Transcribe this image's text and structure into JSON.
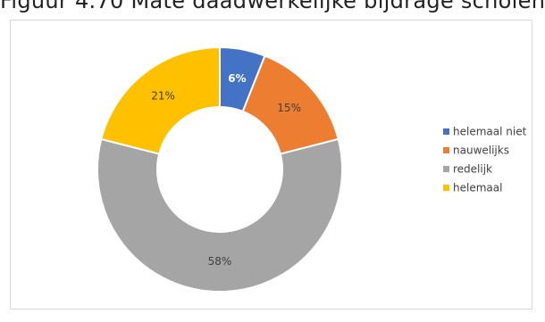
{
  "caption": "Figuur 4.70 Mate daadwerkelijke bijdrage scholen",
  "chart_data": {
    "type": "pie",
    "donut": true,
    "categories": [
      "helemaal niet",
      "nauwelijks",
      "redelijk",
      "helemaal"
    ],
    "values": [
      6,
      15,
      58,
      21
    ],
    "value_labels": [
      "6%",
      "15%",
      "58%",
      "21%"
    ],
    "colors": [
      "#4472c4",
      "#ed7d31",
      "#a5a5a5",
      "#ffc000"
    ],
    "label_colors": [
      "#ffffff",
      "#404040",
      "#404040",
      "#404040"
    ],
    "legend_position": "right"
  }
}
